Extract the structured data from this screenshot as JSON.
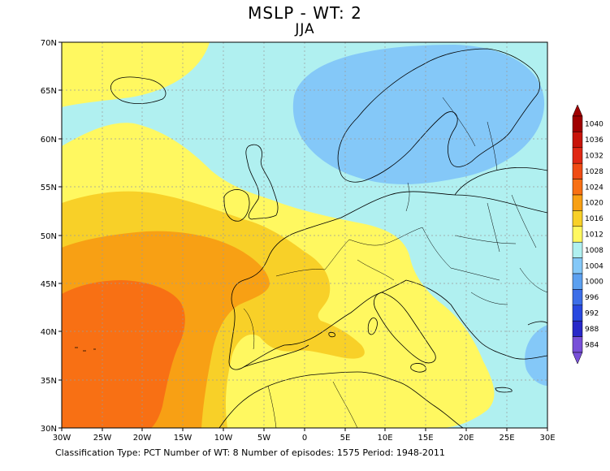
{
  "title": "MSLP - WT: 2",
  "subtitle": "JJA",
  "latitude_labels": [
    "70N",
    "65N",
    "60N",
    "55N",
    "50N",
    "45N",
    "40N",
    "35N",
    "30N"
  ],
  "longitude_labels": [
    "30W",
    "25W",
    "20W",
    "15W",
    "10W",
    "5W",
    "0",
    "5E",
    "10E",
    "15E",
    "20E",
    "25E",
    "30E"
  ],
  "footer": {
    "classification": "Classification Type: PCT",
    "wt_count": "Number of WT: 8",
    "episodes": "Number of episodes: 1575",
    "period": "Period: 1948-2011"
  },
  "colorbar": {
    "levels": [
      "1040",
      "1036",
      "1032",
      "1028",
      "1024",
      "1020",
      "1016",
      "1012",
      "1008",
      "1004",
      "1000",
      "996",
      "992",
      "988",
      "984"
    ],
    "colors": [
      "#a00000",
      "#c8140a",
      "#e02814",
      "#f04c14",
      "#f87014",
      "#f8a014",
      "#f8d028",
      "#fff860",
      "#b0f0f0",
      "#84c8f8",
      "#5ca0f0",
      "#3c6ee8",
      "#2848e0",
      "#2828c8",
      "#7850d8"
    ]
  },
  "legend_colors": {
    "c1008": "#84c8f8",
    "c1012": "#b0f0f0",
    "c1016": "#fff860",
    "c1020": "#f8d028",
    "c1024": "#f8a014",
    "c1028": "#f87014"
  }
}
